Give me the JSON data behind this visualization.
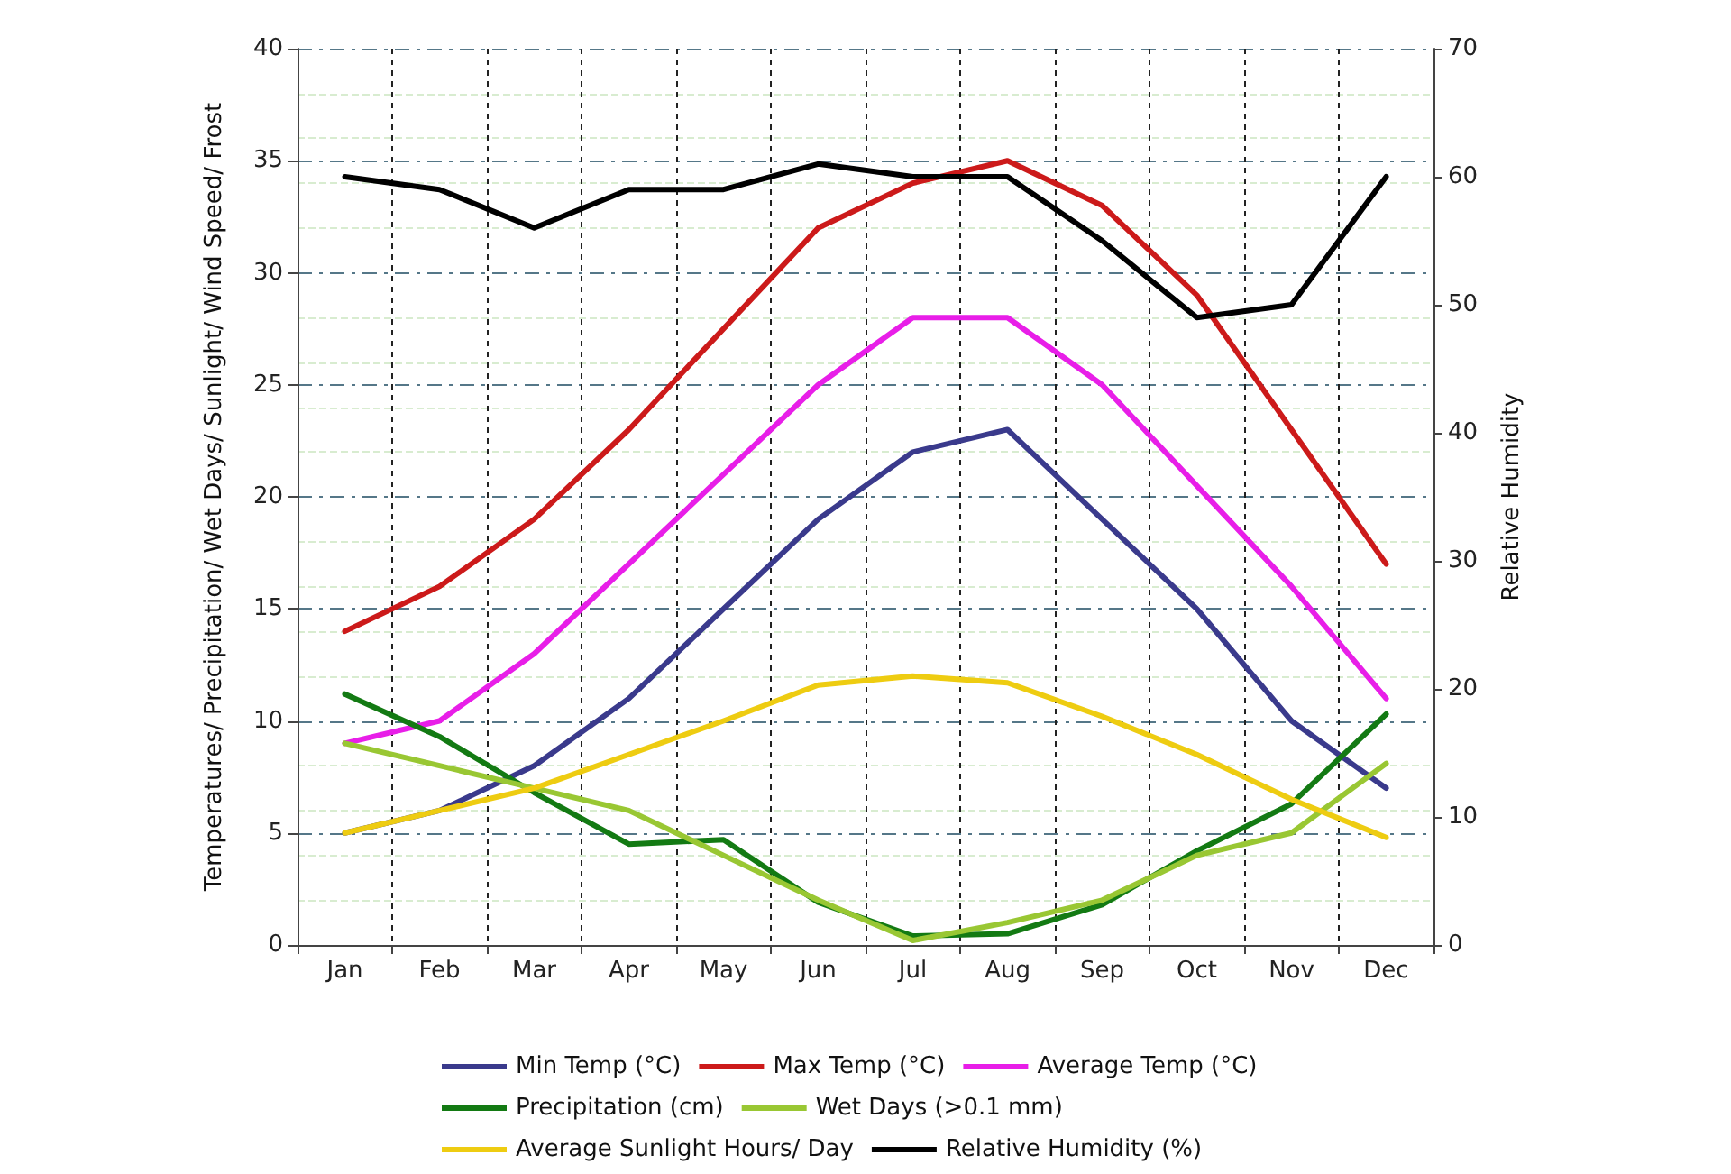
{
  "chart_data": {
    "type": "line",
    "categories": [
      "Jan",
      "Feb",
      "Mar",
      "Apr",
      "May",
      "Jun",
      "Jul",
      "Aug",
      "Sep",
      "Oct",
      "Nov",
      "Dec"
    ],
    "ylabel": "Temperatures/ Precipitation/ Wet Days/ Sunlight/ Wind Speed/ Frost",
    "y2label": "Relative Humidity",
    "ylim": [
      0,
      40
    ],
    "yticks": [
      0,
      5,
      10,
      15,
      20,
      25,
      30,
      35,
      40
    ],
    "y2lim": [
      0,
      70
    ],
    "y2ticks": [
      0,
      10,
      20,
      30,
      40,
      50,
      60,
      70
    ],
    "grid": true,
    "legend": "bottom",
    "marker": "none",
    "line_style": "solid",
    "series": [
      {
        "name": "Min Temp (°C)",
        "color": "#3a3a8c",
        "values": [
          5,
          6,
          8,
          11,
          15,
          19,
          22,
          23,
          19,
          15,
          10,
          7
        ]
      },
      {
        "name": "Max Temp (°C)",
        "color": "#cc1a1a",
        "values": [
          14,
          16,
          19,
          23,
          27.5,
          32,
          34,
          35,
          33,
          29,
          23,
          17
        ]
      },
      {
        "name": "Average Temp (°C)",
        "color": "#e81ee8",
        "values": [
          9,
          10,
          13,
          17,
          21,
          25,
          28,
          28,
          25,
          20.5,
          16,
          11
        ]
      },
      {
        "name": "Precipitation (cm)",
        "color": "#137a13",
        "values": [
          11.2,
          9.3,
          6.8,
          4.5,
          4.7,
          1.9,
          0.4,
          0.5,
          1.8,
          4.2,
          6.3,
          10.3
        ]
      },
      {
        "name": "Wet Days (>0.1 mm)",
        "color": "#99c733",
        "values": [
          9,
          8,
          7,
          6,
          4,
          2,
          0.2,
          1,
          2,
          4,
          5,
          8.1
        ]
      },
      {
        "name": "Average Sunlight Hours/ Day",
        "color": "#eecc11",
        "values": [
          5,
          6,
          7,
          8.5,
          10,
          11.6,
          12,
          11.7,
          10.2,
          8.5,
          6.5,
          4.8
        ]
      },
      {
        "name": "Relative Humidity (%)",
        "color": "#000000",
        "axis": "y2",
        "values": [
          60,
          59,
          56,
          59,
          59,
          61,
          60,
          60,
          55,
          49,
          50,
          60
        ]
      }
    ]
  }
}
